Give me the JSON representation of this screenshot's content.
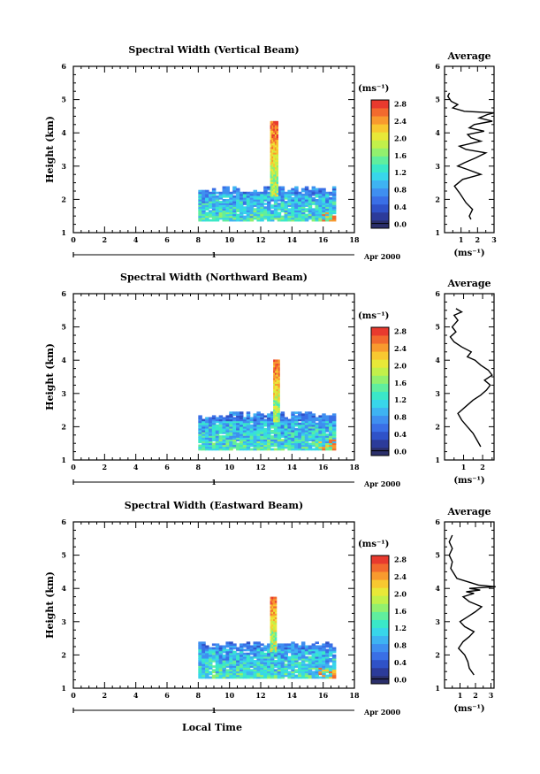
{
  "x_axis_label": "Local Time",
  "date_label": "Apr 2000",
  "day_marker": "1",
  "colorbar_unit": "(ms⁻¹)",
  "colormap": [
    "#2b2f6b",
    "#2c3b9a",
    "#2f52c8",
    "#3a6fe6",
    "#3f8ff0",
    "#3eb3f2",
    "#38d6ea",
    "#3ae8c8",
    "#60ee9e",
    "#92f06e",
    "#c2f04a",
    "#e8e838",
    "#f8c830",
    "#f89a2e",
    "#f26a2e",
    "#e83a2e"
  ],
  "chart_data": [
    {
      "type": "heatmap",
      "title": "Spectral Width (Vertical Beam)",
      "ylabel": "Height (km)",
      "xlim": [
        0,
        18
      ],
      "ylim": [
        1,
        6
      ],
      "x_ticks": [
        "0",
        "2",
        "4",
        "6",
        "8",
        "10",
        "12",
        "14",
        "16",
        "18"
      ],
      "y_ticks": [
        "1",
        "2",
        "3",
        "4",
        "5",
        "6"
      ],
      "colorbar": {
        "min": 0.0,
        "max": 2.8,
        "tick_labels": [
          "0.0",
          "0.4",
          "0.8",
          "1.2",
          "1.6",
          "2.0",
          "2.4",
          "2.8"
        ]
      },
      "data_extent": {
        "x": [
          8.0,
          16.8
        ],
        "y": [
          1.35,
          2.4
        ]
      },
      "spike": {
        "x": [
          12.6,
          13.0
        ],
        "y_top": 4.35
      },
      "profile": {
        "title": "Average",
        "xlabel": "(ms⁻¹)",
        "xlim": [
          0,
          3
        ],
        "ylim": [
          1,
          6
        ],
        "x_ticks": [
          "1",
          "2",
          "3"
        ],
        "y_ticks": [
          "1",
          "2",
          "3",
          "4",
          "5",
          "6"
        ],
        "x": [
          1.6,
          1.5,
          1.7,
          1.3,
          0.9,
          0.6,
          1.1,
          2.2,
          1.4,
          0.8,
          1.2,
          1.9,
          2.5,
          1.3,
          0.9,
          2.2,
          1.6,
          1.4,
          2.4,
          1.5,
          1.8,
          2.9,
          2.1,
          2.6,
          3.0,
          1.2,
          0.5,
          0.8,
          0.4,
          0.2,
          0.3
        ],
        "y": [
          1.4,
          1.5,
          1.7,
          1.9,
          2.2,
          2.4,
          2.6,
          2.75,
          2.9,
          3.0,
          3.1,
          3.25,
          3.4,
          3.5,
          3.6,
          3.75,
          3.85,
          3.95,
          4.05,
          4.15,
          4.25,
          4.35,
          4.45,
          4.55,
          4.6,
          4.65,
          4.75,
          4.85,
          4.95,
          5.1,
          5.2
        ]
      }
    },
    {
      "type": "heatmap",
      "title": "Spectral Width (Northward Beam)",
      "ylabel": "Height (km)",
      "xlim": [
        0,
        18
      ],
      "ylim": [
        1,
        6
      ],
      "x_ticks": [
        "0",
        "2",
        "4",
        "6",
        "8",
        "10",
        "12",
        "14",
        "16",
        "18"
      ],
      "y_ticks": [
        "1",
        "2",
        "3",
        "4",
        "5",
        "6"
      ],
      "colorbar": {
        "min": 0.0,
        "max": 2.8,
        "tick_labels": [
          "0.0",
          "0.4",
          "0.8",
          "1.2",
          "1.6",
          "2.0",
          "2.4",
          "2.8"
        ]
      },
      "data_extent": {
        "x": [
          8.0,
          16.8
        ],
        "y": [
          1.3,
          2.45
        ]
      },
      "spike": {
        "x": [
          12.8,
          13.2
        ],
        "y_top": 4.0
      },
      "profile": {
        "title": "Average",
        "xlabel": "(ms⁻¹)",
        "xlim": [
          0,
          2.6
        ],
        "ylim": [
          1,
          6
        ],
        "x_ticks": [
          "1",
          "2"
        ],
        "y_ticks": [
          "1",
          "2",
          "3",
          "4",
          "5",
          "6"
        ],
        "x": [
          1.9,
          1.7,
          1.5,
          1.2,
          0.9,
          0.7,
          1.1,
          1.5,
          1.9,
          2.2,
          2.4,
          2.1,
          2.5,
          2.3,
          1.9,
          1.6,
          1.2,
          1.4,
          0.9,
          0.5,
          0.3,
          0.6,
          0.4,
          0.7,
          0.5,
          0.9,
          0.6
        ],
        "y": [
          1.4,
          1.6,
          1.8,
          2.0,
          2.2,
          2.4,
          2.6,
          2.8,
          2.95,
          3.1,
          3.25,
          3.4,
          3.55,
          3.7,
          3.85,
          4.0,
          4.1,
          4.25,
          4.4,
          4.55,
          4.7,
          4.85,
          5.0,
          5.2,
          5.35,
          5.45,
          5.55
        ]
      }
    },
    {
      "type": "heatmap",
      "title": "Spectral Width (Eastward Beam)",
      "ylabel": "Height (km)",
      "xlim": [
        0,
        18
      ],
      "ylim": [
        1,
        6
      ],
      "x_ticks": [
        "0",
        "2",
        "4",
        "6",
        "8",
        "10",
        "12",
        "14",
        "16",
        "18"
      ],
      "y_ticks": [
        "1",
        "2",
        "3",
        "4",
        "5",
        "6"
      ],
      "colorbar": {
        "min": 0.0,
        "max": 2.8,
        "tick_labels": [
          "0.0",
          "0.4",
          "0.8",
          "1.2",
          "1.6",
          "2.0",
          "2.4",
          "2.8"
        ]
      },
      "data_extent": {
        "x": [
          8.0,
          16.8
        ],
        "y": [
          1.3,
          2.4
        ]
      },
      "spike": {
        "x": [
          12.6,
          12.9
        ],
        "y_top": 3.7
      },
      "profile": {
        "title": "Average",
        "xlabel": "(ms⁻¹)",
        "xlim": [
          0,
          3.2
        ],
        "ylim": [
          1,
          6
        ],
        "x_ticks": [
          "1",
          "2",
          "3"
        ],
        "y_ticks": [
          "1",
          "2",
          "3",
          "4",
          "5",
          "6"
        ],
        "x": [
          1.9,
          1.6,
          1.5,
          1.3,
          0.9,
          1.2,
          1.6,
          1.9,
          1.3,
          1.0,
          1.5,
          2.0,
          2.4,
          1.6,
          1.2,
          1.9,
          1.4,
          2.3,
          1.6,
          3.3,
          2.2,
          1.5,
          0.8,
          0.6,
          0.4,
          0.5,
          0.3,
          0.5,
          0.3,
          0.5
        ],
        "y": [
          1.4,
          1.6,
          1.8,
          2.0,
          2.2,
          2.4,
          2.55,
          2.7,
          2.85,
          3.0,
          3.15,
          3.3,
          3.45,
          3.6,
          3.75,
          3.85,
          3.9,
          3.95,
          4.0,
          4.05,
          4.1,
          4.2,
          4.3,
          4.45,
          4.6,
          4.8,
          5.0,
          5.2,
          5.4,
          5.6
        ]
      }
    }
  ]
}
